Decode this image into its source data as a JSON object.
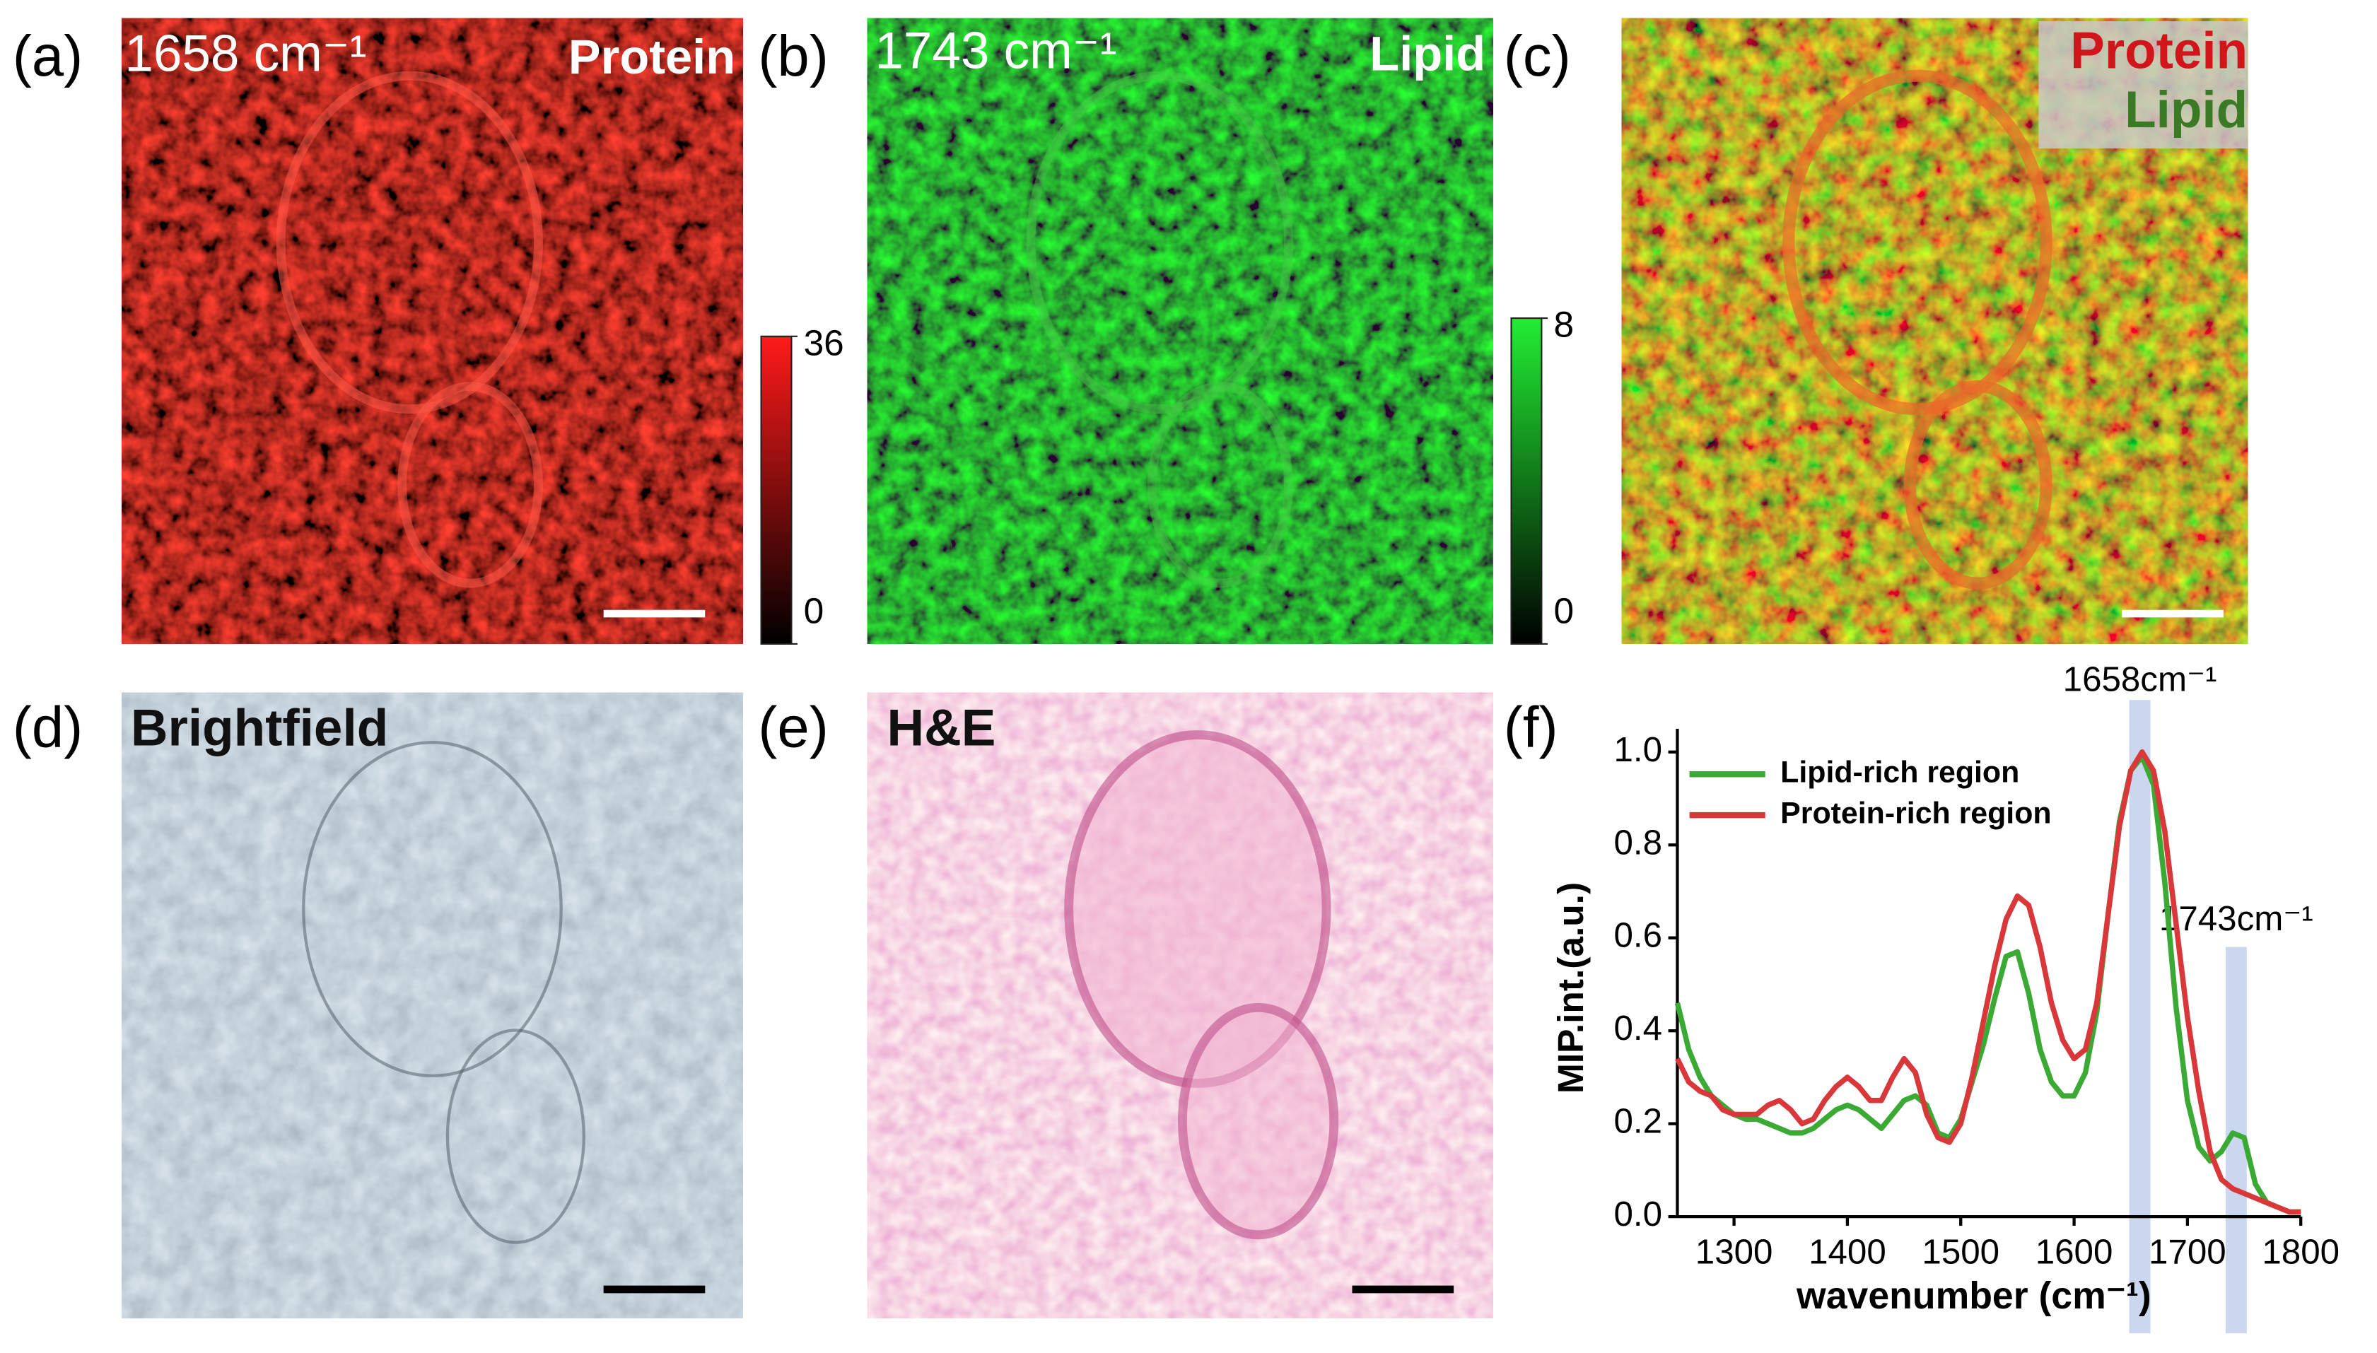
{
  "panels": [
    {
      "label": "(a)",
      "texts": [
        "1658 cm⁻¹",
        "Protein"
      ],
      "colorbar": {
        "ticks": [
          0,
          36
        ]
      }
    },
    {
      "label": "(b)",
      "texts": [
        "1743 cm⁻¹",
        "Lipid"
      ],
      "colorbar": {
        "ticks": [
          0,
          8
        ]
      }
    },
    {
      "label": "(c)",
      "texts": [
        "Protein",
        "Lipid"
      ]
    },
    {
      "label": "(d)",
      "texts": [
        "Brightfield"
      ]
    },
    {
      "label": "(e)",
      "texts": [
        "H&E"
      ]
    },
    {
      "label": "(f)"
    }
  ],
  "chart_data": {
    "type": "line",
    "xlabel": "wavenumber (cm⁻¹)",
    "ylabel": "MIP.int.(a.u.)",
    "x": [
      1250,
      1260,
      1270,
      1280,
      1290,
      1300,
      1310,
      1320,
      1330,
      1340,
      1350,
      1360,
      1370,
      1380,
      1390,
      1400,
      1410,
      1420,
      1430,
      1440,
      1450,
      1460,
      1470,
      1480,
      1490,
      1500,
      1510,
      1520,
      1530,
      1540,
      1550,
      1560,
      1570,
      1580,
      1590,
      1600,
      1610,
      1620,
      1630,
      1640,
      1650,
      1660,
      1670,
      1680,
      1690,
      1700,
      1710,
      1720,
      1730,
      1740,
      1750,
      1760,
      1770,
      1780,
      1790,
      1800
    ],
    "series": [
      {
        "name": "Lipid-rich region",
        "color": "#3aaa35",
        "values": [
          0.46,
          0.36,
          0.3,
          0.26,
          0.24,
          0.22,
          0.21,
          0.21,
          0.2,
          0.19,
          0.18,
          0.18,
          0.19,
          0.21,
          0.23,
          0.24,
          0.23,
          0.21,
          0.19,
          0.22,
          0.25,
          0.26,
          0.24,
          0.18,
          0.17,
          0.21,
          0.29,
          0.37,
          0.47,
          0.56,
          0.57,
          0.48,
          0.36,
          0.29,
          0.26,
          0.26,
          0.31,
          0.44,
          0.65,
          0.85,
          0.96,
          0.99,
          0.93,
          0.72,
          0.45,
          0.25,
          0.15,
          0.12,
          0.14,
          0.18,
          0.17,
          0.07,
          0.03,
          0.02,
          0.01,
          0.01
        ]
      },
      {
        "name": "Protein-rich region",
        "color": "#d9383a",
        "values": [
          0.34,
          0.29,
          0.27,
          0.26,
          0.23,
          0.22,
          0.22,
          0.22,
          0.24,
          0.25,
          0.23,
          0.2,
          0.21,
          0.25,
          0.28,
          0.3,
          0.28,
          0.25,
          0.25,
          0.3,
          0.34,
          0.31,
          0.22,
          0.17,
          0.16,
          0.2,
          0.3,
          0.42,
          0.54,
          0.64,
          0.69,
          0.67,
          0.58,
          0.46,
          0.38,
          0.34,
          0.36,
          0.46,
          0.65,
          0.84,
          0.96,
          1.0,
          0.96,
          0.83,
          0.63,
          0.43,
          0.27,
          0.14,
          0.08,
          0.06,
          0.05,
          0.04,
          0.03,
          0.02,
          0.01,
          0.01
        ]
      }
    ],
    "xlim": [
      1250,
      1800
    ],
    "xticks": [
      1300,
      1400,
      1500,
      1600,
      1700,
      1800
    ],
    "ylim": [
      0,
      1.05
    ],
    "yticks": [
      {
        "value": 0,
        "label": "0.0"
      },
      {
        "value": 0.2,
        "label": "0.2"
      },
      {
        "value": 0.4,
        "label": "0.4"
      },
      {
        "value": 0.6,
        "label": "0.6"
      },
      {
        "value": 0.8,
        "label": "0.8"
      },
      {
        "value": 1,
        "label": "1.0"
      }
    ],
    "annotations": [
      {
        "x": 1658,
        "label": "1658cm⁻¹"
      },
      {
        "x": 1743,
        "label": "1743cm⁻¹"
      }
    ],
    "legend": "upper left"
  }
}
